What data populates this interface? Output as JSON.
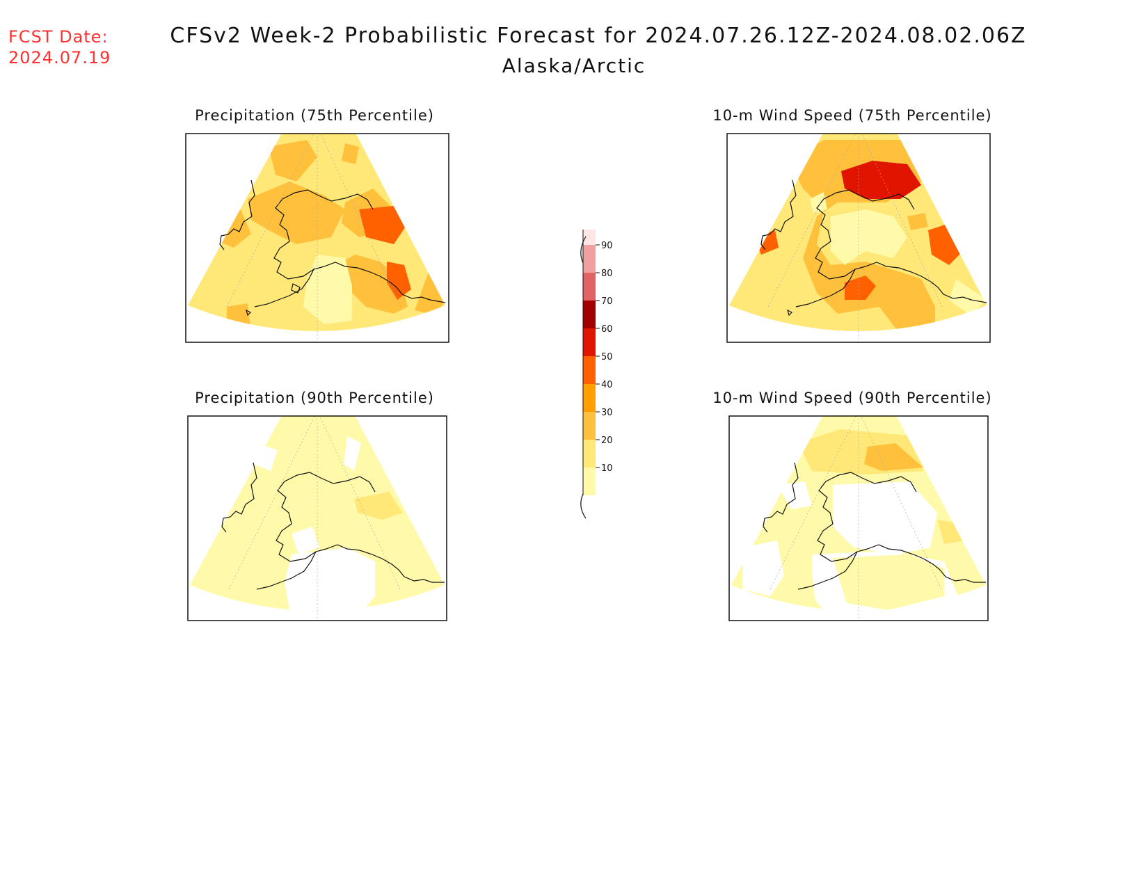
{
  "header": {
    "fcst_label": "FCST Date:",
    "fcst_date": "2024.07.19",
    "title": "CFSv2 Week-2 Probabilistic Forecast for 2024.07.26.12Z-2024.08.02.06Z",
    "subtitle": "Alaska/Arctic"
  },
  "panels": [
    {
      "title": "Precipitation (75th Percentile)"
    },
    {
      "title": "10-m Wind Speed (75th Percentile)"
    },
    {
      "title": "Precipitation (90th Percentile)"
    },
    {
      "title": "10-m Wind Speed (90th Percentile)"
    }
  ],
  "legend": {
    "levels": [
      "10",
      "20",
      "30",
      "40",
      "50",
      "60",
      "70",
      "80",
      "90"
    ],
    "colors": [
      "#fffaaa",
      "#ffe878",
      "#ffc03c",
      "#ffa000",
      "#ff6000",
      "#e11400",
      "#a50000",
      "#e16464",
      "#f0a0a0",
      "#ffe6e6"
    ]
  },
  "colors": {
    "fcst_text": "#ff3030",
    "c1": "#fffaaa",
    "c2": "#ffe878",
    "c3": "#ffc03c",
    "c4": "#ff6000",
    "c5": "#e11400"
  }
}
